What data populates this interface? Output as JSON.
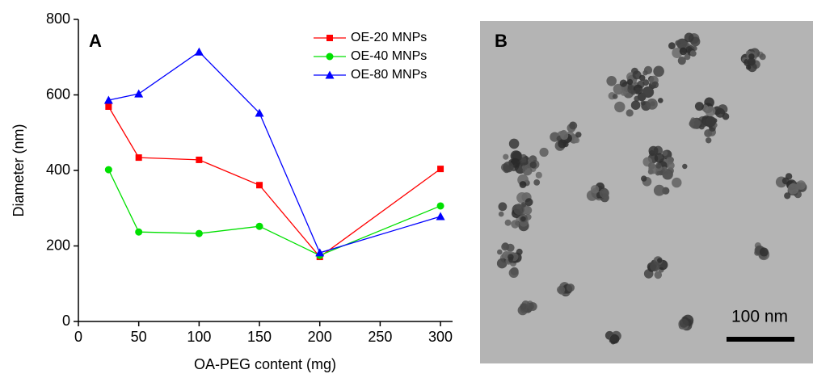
{
  "chart_data": {
    "type": "line",
    "panel_label": "A",
    "x_label": "OA-PEG content (mg)",
    "y_label": "Diameter (nm)",
    "x": [
      25,
      50,
      100,
      150,
      200,
      300
    ],
    "series": [
      {
        "name": "OE-20 MNPs",
        "color": "#ff0000",
        "marker": "square",
        "values": [
          569,
          434,
          428,
          361,
          171,
          404
        ]
      },
      {
        "name": "OE-40 MNPs",
        "color": "#00e000",
        "marker": "circle",
        "values": [
          402,
          237,
          233,
          252,
          175,
          306
        ]
      },
      {
        "name": "OE-80 MNPs",
        "color": "#0000ff",
        "marker": "triangle",
        "values": [
          586,
          603,
          714,
          552,
          182,
          278
        ]
      }
    ],
    "xlim": [
      0,
      310
    ],
    "ylim": [
      0,
      800
    ],
    "xticks": [
      0,
      50,
      100,
      150,
      200,
      250,
      300
    ],
    "yticks": [
      0,
      200,
      400,
      600,
      800
    ],
    "legend": "upper right"
  },
  "image": {
    "panel_label": "B",
    "scale_label": "100 nm"
  }
}
